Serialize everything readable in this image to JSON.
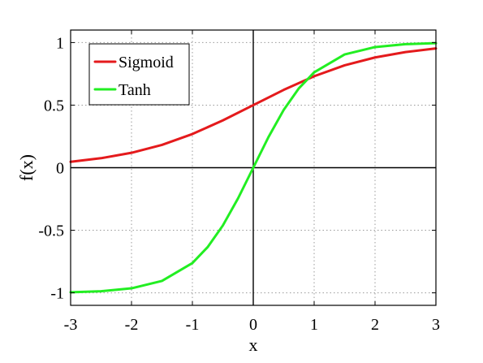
{
  "chart_data": {
    "type": "line",
    "xlabel": "x",
    "ylabel": "f(x)",
    "xlim": [
      -3,
      3
    ],
    "ylim": [
      -1.1,
      1.1
    ],
    "xticks": [
      -3,
      -2,
      -1,
      0,
      1,
      2,
      3
    ],
    "yticks": [
      -1,
      -0.5,
      0,
      0.5,
      1
    ],
    "grid": true,
    "zero_lines": true,
    "legend_position": "top-left",
    "series": [
      {
        "name": "Sigmoid",
        "color": "#e41a1c",
        "x": [
          -3,
          -2.5,
          -2,
          -1.5,
          -1,
          -0.5,
          0,
          0.5,
          1,
          1.5,
          2,
          2.5,
          3
        ],
        "y": [
          0.047,
          0.076,
          0.119,
          0.182,
          0.269,
          0.378,
          0.5,
          0.622,
          0.731,
          0.818,
          0.881,
          0.924,
          0.953
        ]
      },
      {
        "name": "Tanh",
        "color": "#22ee22",
        "x": [
          -3,
          -2.5,
          -2,
          -1.5,
          -1,
          -0.75,
          -0.5,
          -0.25,
          0,
          0.25,
          0.5,
          0.75,
          1,
          1.5,
          2,
          2.5,
          3
        ],
        "y": [
          -0.995,
          -0.987,
          -0.964,
          -0.905,
          -0.762,
          -0.635,
          -0.462,
          -0.245,
          0,
          0.245,
          0.462,
          0.635,
          0.762,
          0.905,
          0.964,
          0.987,
          0.995
        ]
      }
    ]
  }
}
